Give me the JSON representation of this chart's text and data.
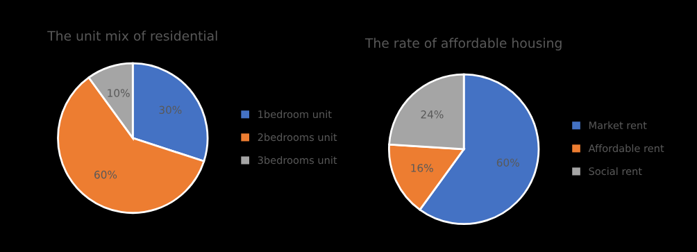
{
  "chart_data": [
    {
      "type": "pie",
      "title": "The unit mix of residential",
      "categories": [
        "1bedroom unit",
        "2bedrooms unit",
        "3bedrooms unit"
      ],
      "values": [
        30,
        60,
        10
      ],
      "colors": [
        "#4472c4",
        "#ed7d31",
        "#a5a5a5"
      ],
      "value_labels": [
        "30%",
        "60%",
        "10%"
      ],
      "legend": "right"
    },
    {
      "type": "pie",
      "title": "The rate of affordable housing",
      "categories": [
        "Market rent",
        "Affordable rent",
        "Social rent"
      ],
      "values": [
        60,
        16,
        24
      ],
      "colors": [
        "#4472c4",
        "#ed7d31",
        "#a5a5a5"
      ],
      "value_labels": [
        "60%",
        "16%",
        "24%"
      ],
      "legend": "right"
    }
  ]
}
